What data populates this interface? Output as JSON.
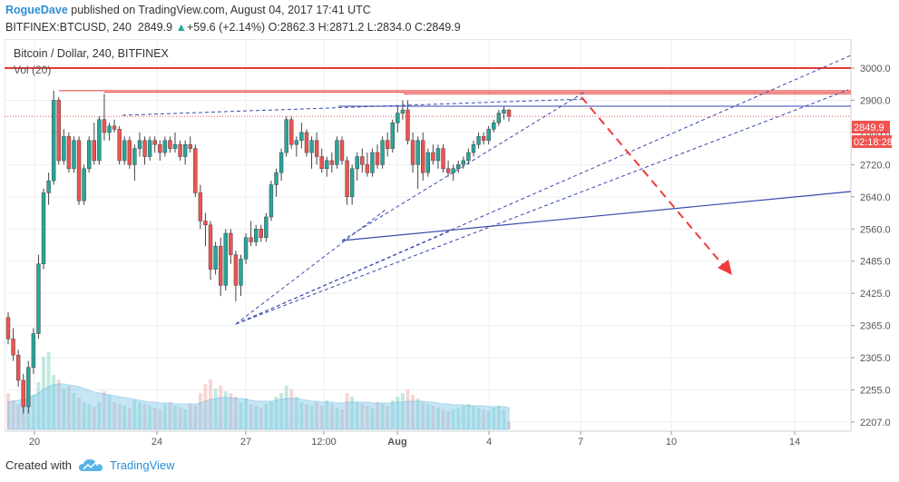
{
  "header": {
    "author": "RogueDave",
    "published_text": "published on TradingView.com, August 04, 2017 17:41 UTC",
    "symbol": "BITFINEX:BTCUSD, 240",
    "last": "2849.9",
    "change": "+59.6 (+2.14%)",
    "o_label": "O:",
    "o": "2862.3",
    "h_label": "H:",
    "h": "2871.2",
    "l_label": "L:",
    "l": "2834.0",
    "c_label": "C:",
    "c": "2849.9"
  },
  "chart_title": "Bitcoin / Dollar, 240, BITFINEX",
  "volume_label": "Vol (20)",
  "price_badge": "2849.9",
  "countdown_badge": "02:18:28",
  "footer": {
    "created_with": "Created with",
    "brand": "TradingView"
  },
  "colors": {
    "up": "#26a69a",
    "down": "#ef5350",
    "resistance": "#e53935",
    "support_line": "#3949ab",
    "projection": "#ef3b3b"
  },
  "chart_data": {
    "type": "candlestick",
    "timeframe": "240",
    "y_ticks": [
      3000.0,
      2900.0,
      2800.0,
      2720.0,
      2640.0,
      2560.0,
      2485.0,
      2425.0,
      2365.0,
      2305.0,
      2255.0,
      2207.0
    ],
    "y_tick_labels": [
      "3000.0",
      "2900.0",
      "2800.0",
      "2720.0",
      "2640.0",
      "2560.0",
      "2485.0",
      "2425.0",
      "2365.0",
      "2305.0",
      "2255.0",
      "2207.0"
    ],
    "x_tick_labels": [
      "20",
      "24",
      "27",
      "12:00",
      "Aug",
      "4",
      "7",
      "10",
      "14"
    ],
    "grid": true,
    "last_price": 2849.9,
    "candles": [
      [
        2380,
        2390,
        2330,
        2340
      ],
      [
        2340,
        2360,
        2300,
        2310
      ],
      [
        2310,
        2320,
        2260,
        2270
      ],
      [
        2270,
        2280,
        2220,
        2230
      ],
      [
        2230,
        2300,
        2220,
        2290
      ],
      [
        2290,
        2360,
        2280,
        2350
      ],
      [
        2350,
        2500,
        2340,
        2480
      ],
      [
        2480,
        2660,
        2470,
        2650
      ],
      [
        2650,
        2700,
        2620,
        2680
      ],
      [
        2680,
        2930,
        2670,
        2900
      ],
      [
        2900,
        2910,
        2720,
        2730
      ],
      [
        2730,
        2810,
        2720,
        2790
      ],
      [
        2790,
        2800,
        2700,
        2710
      ],
      [
        2710,
        2790,
        2700,
        2780
      ],
      [
        2780,
        2790,
        2620,
        2630
      ],
      [
        2630,
        2720,
        2620,
        2710
      ],
      [
        2710,
        2790,
        2700,
        2780
      ],
      [
        2780,
        2830,
        2720,
        2730
      ],
      [
        2730,
        2850,
        2720,
        2840
      ],
      [
        2840,
        2920,
        2780,
        2800
      ],
      [
        2800,
        2830,
        2780,
        2820
      ],
      [
        2820,
        2840,
        2800,
        2810
      ],
      [
        2810,
        2820,
        2720,
        2730
      ],
      [
        2730,
        2790,
        2720,
        2780
      ],
      [
        2780,
        2790,
        2710,
        2720
      ],
      [
        2720,
        2770,
        2680,
        2760
      ],
      [
        2760,
        2800,
        2740,
        2780
      ],
      [
        2780,
        2790,
        2720,
        2740
      ],
      [
        2740,
        2790,
        2730,
        2780
      ],
      [
        2780,
        2790,
        2750,
        2770
      ],
      [
        2770,
        2780,
        2730,
        2750
      ],
      [
        2750,
        2790,
        2740,
        2780
      ],
      [
        2780,
        2790,
        2750,
        2760
      ],
      [
        2760,
        2800,
        2750,
        2770
      ],
      [
        2770,
        2780,
        2730,
        2740
      ],
      [
        2740,
        2780,
        2720,
        2770
      ],
      [
        2770,
        2790,
        2750,
        2760
      ],
      [
        2760,
        2770,
        2640,
        2650
      ],
      [
        2650,
        2670,
        2560,
        2580
      ],
      [
        2580,
        2600,
        2520,
        2570
      ],
      [
        2570,
        2580,
        2450,
        2470
      ],
      [
        2470,
        2530,
        2460,
        2520
      ],
      [
        2520,
        2540,
        2420,
        2440
      ],
      [
        2440,
        2560,
        2430,
        2550
      ],
      [
        2550,
        2560,
        2480,
        2500
      ],
      [
        2500,
        2510,
        2410,
        2440
      ],
      [
        2440,
        2500,
        2420,
        2490
      ],
      [
        2490,
        2550,
        2480,
        2540
      ],
      [
        2540,
        2580,
        2520,
        2530
      ],
      [
        2530,
        2570,
        2520,
        2560
      ],
      [
        2560,
        2570,
        2530,
        2540
      ],
      [
        2540,
        2600,
        2530,
        2590
      ],
      [
        2590,
        2680,
        2580,
        2670
      ],
      [
        2670,
        2710,
        2640,
        2700
      ],
      [
        2700,
        2760,
        2680,
        2750
      ],
      [
        2750,
        2850,
        2740,
        2840
      ],
      [
        2840,
        2850,
        2760,
        2770
      ],
      [
        2770,
        2790,
        2740,
        2780
      ],
      [
        2780,
        2830,
        2760,
        2800
      ],
      [
        2800,
        2810,
        2740,
        2750
      ],
      [
        2750,
        2790,
        2710,
        2780
      ],
      [
        2780,
        2800,
        2720,
        2740
      ],
      [
        2740,
        2760,
        2700,
        2710
      ],
      [
        2710,
        2740,
        2690,
        2730
      ],
      [
        2730,
        2750,
        2700,
        2720
      ],
      [
        2720,
        2790,
        2710,
        2780
      ],
      [
        2780,
        2790,
        2720,
        2730
      ],
      [
        2730,
        2740,
        2620,
        2640
      ],
      [
        2640,
        2720,
        2620,
        2710
      ],
      [
        2710,
        2750,
        2680,
        2740
      ],
      [
        2740,
        2760,
        2700,
        2720
      ],
      [
        2720,
        2750,
        2690,
        2700
      ],
      [
        2700,
        2760,
        2690,
        2750
      ],
      [
        2750,
        2770,
        2710,
        2720
      ],
      [
        2720,
        2790,
        2710,
        2780
      ],
      [
        2780,
        2800,
        2740,
        2760
      ],
      [
        2760,
        2840,
        2750,
        2830
      ],
      [
        2830,
        2880,
        2800,
        2860
      ],
      [
        2860,
        2900,
        2840,
        2870
      ],
      [
        2870,
        2900,
        2770,
        2780
      ],
      [
        2780,
        2800,
        2700,
        2720
      ],
      [
        2720,
        2790,
        2660,
        2780
      ],
      [
        2780,
        2800,
        2680,
        2700
      ],
      [
        2700,
        2760,
        2690,
        2750
      ],
      [
        2750,
        2770,
        2720,
        2730
      ],
      [
        2730,
        2770,
        2710,
        2760
      ],
      [
        2760,
        2770,
        2700,
        2710
      ],
      [
        2710,
        2730,
        2690,
        2700
      ],
      [
        2700,
        2720,
        2680,
        2710
      ],
      [
        2710,
        2730,
        2700,
        2720
      ],
      [
        2720,
        2740,
        2710,
        2730
      ],
      [
        2730,
        2760,
        2720,
        2750
      ],
      [
        2750,
        2780,
        2740,
        2770
      ],
      [
        2770,
        2800,
        2760,
        2790
      ],
      [
        2790,
        2800,
        2770,
        2780
      ],
      [
        2780,
        2820,
        2770,
        2810
      ],
      [
        2810,
        2840,
        2800,
        2830
      ],
      [
        2830,
        2870,
        2820,
        2860
      ],
      [
        2860,
        2880,
        2840,
        2870
      ],
      [
        2870,
        2872,
        2834,
        2850
      ]
    ],
    "volume": [
      40,
      32,
      28,
      30,
      46,
      38,
      52,
      80,
      85,
      60,
      55,
      45,
      48,
      40,
      35,
      30,
      28,
      25,
      30,
      42,
      38,
      30,
      28,
      26,
      24,
      32,
      30,
      28,
      26,
      24,
      22,
      28,
      30,
      26,
      24,
      22,
      28,
      26,
      40,
      50,
      55,
      45,
      48,
      42,
      40,
      36,
      30,
      34,
      28,
      26,
      24,
      28,
      30,
      36,
      40,
      48,
      44,
      36,
      30,
      28,
      26,
      30,
      26,
      32,
      28,
      24,
      22,
      40,
      36,
      30,
      28,
      26,
      24,
      30,
      28,
      26,
      32,
      36,
      40,
      44,
      38,
      34,
      30,
      28,
      26,
      24,
      22,
      20,
      22,
      24,
      26,
      28,
      26,
      24,
      22,
      20,
      24,
      26,
      22,
      8
    ],
    "volume_ma": [
      30,
      31,
      32,
      33,
      35,
      37,
      40,
      44,
      47,
      49,
      50,
      50,
      49,
      48,
      47,
      45,
      43,
      41,
      40,
      39,
      38,
      37,
      36,
      35,
      34,
      33,
      32,
      31,
      30,
      30,
      29,
      29,
      29,
      28,
      28,
      28,
      28,
      28,
      29,
      31,
      33,
      34,
      35,
      35,
      35,
      34,
      34,
      33,
      32,
      31,
      31,
      31,
      31,
      32,
      33,
      34,
      34,
      34,
      33,
      32,
      31,
      31,
      30,
      30,
      30,
      29,
      29,
      30,
      30,
      30,
      30,
      30,
      29,
      29,
      29,
      29,
      29,
      30,
      30,
      31,
      31,
      31,
      31,
      30,
      30,
      29,
      28,
      28,
      27,
      27,
      27,
      26,
      26,
      26,
      26,
      25,
      25,
      25,
      25,
      24
    ],
    "horizontal_lines": [
      3000,
      2930,
      2925,
      2920
    ],
    "support_line": {
      "from": [
        2585,
        "Jul 28"
      ],
      "to": [
        2695,
        "Aug 16"
      ]
    },
    "projection_arrow": {
      "from": [
        2920,
        "Aug 6"
      ],
      "to": [
        2505,
        "Aug 12"
      ]
    }
  }
}
